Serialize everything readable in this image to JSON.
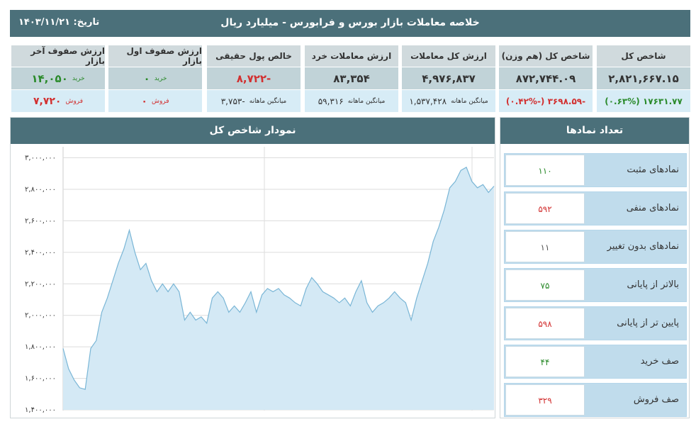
{
  "header": {
    "title": "خلاصه معاملات بازار بورس و فرابورس - میلیارد ریال",
    "date": "تاریخ: ۱۴۰۳/۱۱/۲۱"
  },
  "cards": [
    {
      "title": "شاخص کل",
      "value": "۲,۸۲۱,۶۶۷.۱۵",
      "change": "۱۷۶۳۱.۷۷ (۰.۶۳%)"
    },
    {
      "title": "شاخص کل (هم وزن)",
      "value": "۸۷۲,۷۴۴.۰۹",
      "change": "-۳۶۹۸.۵۹ (-۰.۴۲%)"
    },
    {
      "title": "ارزش کل معاملات",
      "value": "۴,۹۷۶,۸۳۷",
      "avg_label": "میانگین ماهانه",
      "avg": "۱,۵۳۷,۴۲۸"
    },
    {
      "title": "ارزش معاملات خرد",
      "value": "۸۳,۳۵۴",
      "avg_label": "میانگین ماهانه",
      "avg": "۵۹,۳۱۶"
    },
    {
      "title": "خالص پول حقیقی",
      "value": "-۸,۷۲۲",
      "avg_label": "میانگین ماهانه",
      "avg": "-۳,۷۵۳"
    },
    {
      "title": "ارزش صفوف اول بازار",
      "buy_label": "خرید",
      "buy": "۰",
      "sell_label": "فروش",
      "sell": "۰"
    },
    {
      "title": "ارزش صفوف آخر بازار",
      "buy_label": "خرید",
      "buy": "۱۴,۰۵۰",
      "sell_label": "فروش",
      "sell": "۷,۷۲۰"
    }
  ],
  "chart_data": {
    "type": "line",
    "title": "نمودار شاخص کل",
    "color": "#7ab6d6",
    "fill": "#d4e9f5",
    "grid": true,
    "values": [
      1790000,
      1660000,
      1590000,
      1540000,
      1530000,
      1790000,
      1840000,
      2020000,
      2110000,
      2220000,
      2330000,
      2420000,
      2540000,
      2400000,
      2290000,
      2330000,
      2220000,
      2150000,
      2200000,
      2150000,
      2200000,
      2150000,
      1970000,
      2020000,
      1970000,
      1990000,
      1950000,
      2110000,
      2150000,
      2110000,
      2020000,
      2060000,
      2020000,
      2080000,
      2150000,
      2020000,
      2130000,
      2170000,
      2150000,
      2170000,
      2130000,
      2110000,
      2080000,
      2060000,
      2170000,
      2240000,
      2200000,
      2150000,
      2130000,
      2110000,
      2080000,
      2110000,
      2060000,
      2150000,
      2220000,
      2080000,
      2020000,
      2060000,
      2080000,
      2110000,
      2150000,
      2110000,
      2080000,
      1970000,
      2110000,
      2220000,
      2330000,
      2470000,
      2560000,
      2670000,
      2810000,
      2850000,
      2920000,
      2940000,
      2850000,
      2810000,
      2830000,
      2780000,
      2820000
    ],
    "ylim": [
      1400000,
      3070000
    ],
    "yticks": [
      {
        "value": 1400000,
        "label": "۱,۴۰۰,۰۰۰"
      },
      {
        "value": 1600000,
        "label": "۱,۶۰۰,۰۰۰"
      },
      {
        "value": 1800000,
        "label": "۱,۸۰۰,۰۰۰"
      },
      {
        "value": 2000000,
        "label": "۲,۰۰۰,۰۰۰"
      },
      {
        "value": 2200000,
        "label": "۲,۲۰۰,۰۰۰"
      },
      {
        "value": 2400000,
        "label": "۲,۴۰۰,۰۰۰"
      },
      {
        "value": 2600000,
        "label": "۲,۶۰۰,۰۰۰"
      },
      {
        "value": 2800000,
        "label": "۲,۸۰۰,۰۰۰"
      },
      {
        "value": 3000000,
        "label": "۳,۰۰۰,۰۰۰"
      }
    ]
  },
  "symbols": {
    "title": "تعداد نمادها",
    "rows": [
      {
        "label": "نمادهای مثبت",
        "count": "۱۱۰"
      },
      {
        "label": "نمادهای منفی",
        "count": "۵۹۲"
      },
      {
        "label": "نمادهای بدون تغییر",
        "count": "۱۱"
      },
      {
        "label": "بالاتر از پایانی",
        "count": "۷۵"
      },
      {
        "label": "پایین تر از پایانی",
        "count": "۵۹۸"
      },
      {
        "label": "صف خرید",
        "count": "۴۴"
      },
      {
        "label": "صف فروش",
        "count": "۳۲۹"
      }
    ]
  }
}
